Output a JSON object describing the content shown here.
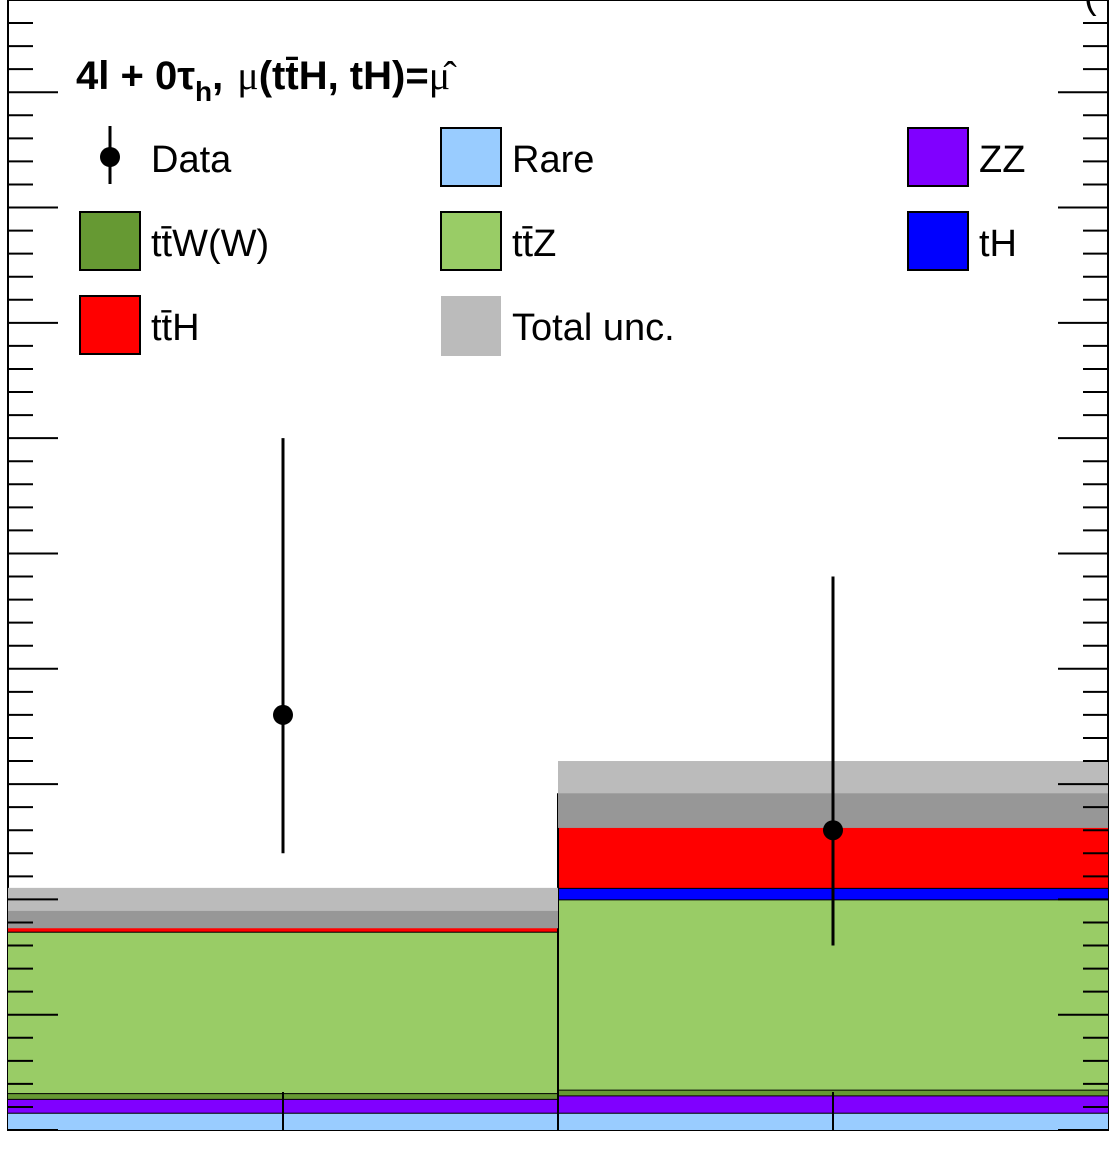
{
  "chart_data": {
    "type": "bar",
    "stacked": true,
    "title": "4l + 0τh, μ(tt̄H, tH)=μ̂",
    "title_parts": {
      "main": "4l + 0τ",
      "sub": "h",
      "comma": ",",
      "mu": "μ",
      "process": "(tt̄H, tH)=",
      "muhat": "μ̂"
    },
    "corner_text": "(",
    "bins": [
      {
        "x_low": 0,
        "x_high": 1
      },
      {
        "x_low": 1,
        "x_high": 2
      }
    ],
    "xlim": [
      0,
      2
    ],
    "ylim": [
      0,
      9.8
    ],
    "y_major_step": 1,
    "y_minor_per_major": 4,
    "x_tick_positions": [
      0.5,
      1.5
    ],
    "grid": false,
    "legend_position": "top",
    "series": [
      {
        "name": "Rare",
        "color": "#99ccff",
        "values": [
          0.15,
          0.15
        ]
      },
      {
        "name": "ZZ",
        "color": "#8000ff",
        "values": [
          0.12,
          0.15
        ]
      },
      {
        "name": "tt̄W(W)",
        "color": "#669933",
        "values": [
          0.05,
          0.05
        ]
      },
      {
        "name": "tt̄Z",
        "color": "#99cc66",
        "values": [
          1.4,
          1.65
        ]
      },
      {
        "name": "tH",
        "color": "#0000ff",
        "values": [
          0.0,
          0.1
        ]
      },
      {
        "name": "tt̄H",
        "color": "#ff0000",
        "values": [
          0.18,
          0.82
        ]
      }
    ],
    "uncertainty": {
      "name": "Total unc.",
      "color": "#bbbbbb",
      "low": [
        1.75,
        2.62
      ],
      "high": [
        2.1,
        3.2
      ]
    },
    "data": {
      "name": "Data",
      "points": [
        {
          "x": 0.5,
          "y": 3.6,
          "err_low": 1.2,
          "err_high": 2.4
        },
        {
          "x": 1.5,
          "y": 2.6,
          "err_low": 1.0,
          "err_high": 2.2
        }
      ]
    },
    "legend": [
      {
        "label": "Data",
        "kind": "marker"
      },
      {
        "label": "Rare",
        "kind": "box",
        "color": "#99ccff"
      },
      {
        "label": "ZZ",
        "kind": "box",
        "color": "#8000ff"
      },
      {
        "label": "tt̄W(W)",
        "kind": "box",
        "color": "#669933"
      },
      {
        "label": "tt̄Z",
        "kind": "box",
        "color": "#99cc66"
      },
      {
        "label": "tH",
        "kind": "box",
        "color": "#0000ff"
      },
      {
        "label": "tt̄H",
        "kind": "box",
        "color": "#ff0000"
      },
      {
        "label": "Total unc.",
        "kind": "fill",
        "color": "#bbbbbb"
      }
    ]
  }
}
